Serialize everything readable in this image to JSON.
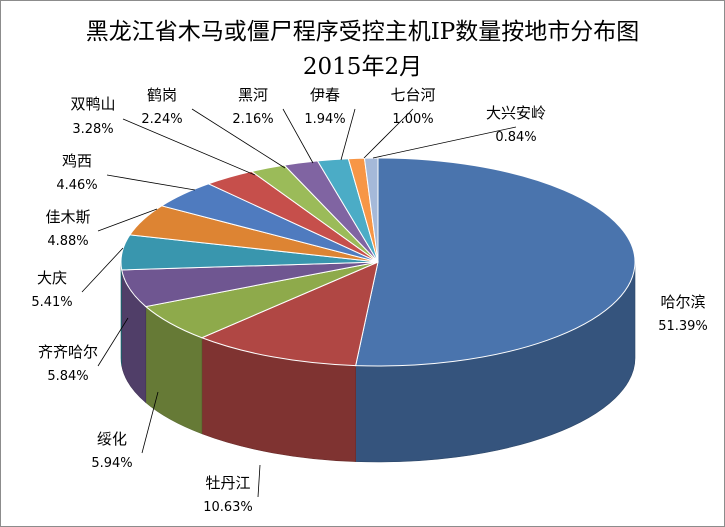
{
  "chart_data": {
    "type": "pie",
    "title": "黑龙江省木马或僵尸程序受控主机IP数量按地市分布图",
    "subtitle": "2015年2月",
    "is_3d": true,
    "slices": [
      {
        "name": "哈尔滨",
        "value": 51.39,
        "label": "51.39%",
        "color": "#4a74ad"
      },
      {
        "name": "牡丹江",
        "value": 10.63,
        "label": "10.63%",
        "color": "#b04744"
      },
      {
        "name": "绥化",
        "value": 5.94,
        "label": "5.94%",
        "color": "#8eaa4b"
      },
      {
        "name": "齐齐哈尔",
        "value": 5.84,
        "label": "5.84%",
        "color": "#6f5691"
      },
      {
        "name": "大庆",
        "value": 5.41,
        "label": "5.41%",
        "color": "#3996ae"
      },
      {
        "name": "佳木斯",
        "value": 4.88,
        "label": "4.88%",
        "color": "#dd8433"
      },
      {
        "name": "鸡西",
        "value": 4.46,
        "label": "4.46%",
        "color": "#4f7bbf"
      },
      {
        "name": "双鸭山",
        "value": 3.28,
        "label": "3.28%",
        "color": "#c64f4b"
      },
      {
        "name": "鹤岗",
        "value": 2.24,
        "label": "2.24%",
        "color": "#9bbb59"
      },
      {
        "name": "黑河",
        "value": 2.16,
        "label": "2.16%",
        "color": "#8064a2"
      },
      {
        "name": "伊春",
        "value": 1.94,
        "label": "1.94%",
        "color": "#4bacc6"
      },
      {
        "name": "七台河",
        "value": 1.0,
        "label": "1.00%",
        "color": "#f79646"
      },
      {
        "name": "大兴安岭",
        "value": 0.84,
        "label": "0.84%",
        "color": "#a5b9d9"
      }
    ]
  }
}
